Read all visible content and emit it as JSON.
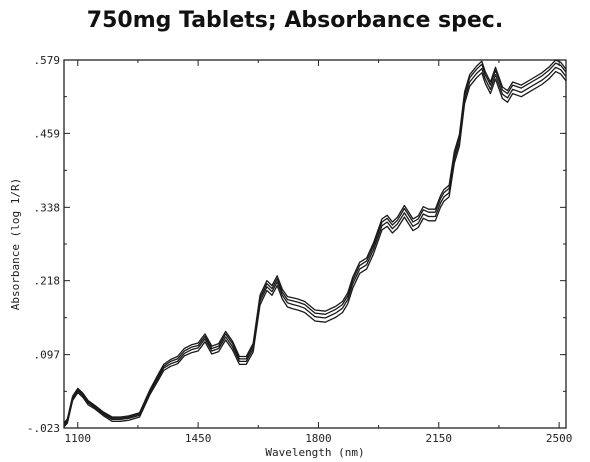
{
  "chart_data": {
    "type": "line",
    "title": "750mg Tablets; Absorbance spec.",
    "xlabel": "Wavelength (nm)",
    "ylabel": "Absorbance (log 1/R)",
    "xlim": [
      1060,
      2520
    ],
    "ylim": [
      -0.023,
      0.579
    ],
    "xticks": [
      1100,
      1450,
      1800,
      2150,
      2500
    ],
    "xtick_labels": [
      "1100",
      "1450",
      "1800",
      "2150",
      "2500"
    ],
    "yticks": [
      -0.023,
      0.097,
      0.218,
      0.338,
      0.459,
      0.579
    ],
    "ytick_labels": [
      "-.023",
      ".097",
      ".218",
      ".338",
      ".459",
      ".579"
    ],
    "grid": false,
    "legend": "none",
    "line_color": "#1a1a1a",
    "series": [
      {
        "x": [
          1060,
          1070,
          1085,
          1100,
          1115,
          1130,
          1150,
          1175,
          1200,
          1225,
          1250,
          1280,
          1310,
          1335,
          1350,
          1370,
          1390,
          1410,
          1430,
          1450,
          1470,
          1490,
          1510,
          1530,
          1550,
          1570,
          1590,
          1610,
          1630,
          1650,
          1665,
          1680,
          1695,
          1710,
          1725,
          1740,
          1760,
          1790,
          1820,
          1850,
          1870,
          1885,
          1900,
          1920,
          1940,
          1960,
          1985,
          2000,
          2015,
          2030,
          2050,
          2075,
          2090,
          2105,
          2120,
          2140,
          2155,
          2165,
          2180,
          2195,
          2210,
          2225,
          2240,
          2260,
          2275,
          2285,
          2300,
          2315,
          2335,
          2350,
          2365,
          2390,
          2420,
          2450,
          2470,
          2490,
          2505,
          2520
        ],
        "y": [
          -0.021,
          -0.015,
          0.022,
          0.035,
          0.027,
          0.015,
          0.008,
          -0.003,
          -0.012,
          -0.012,
          -0.01,
          -0.005,
          0.032,
          0.056,
          0.071,
          0.078,
          0.082,
          0.095,
          0.1,
          0.103,
          0.118,
          0.098,
          0.102,
          0.121,
          0.105,
          0.081,
          0.081,
          0.101,
          0.178,
          0.202,
          0.194,
          0.21,
          0.188,
          0.175,
          0.172,
          0.17,
          0.166,
          0.152,
          0.15,
          0.158,
          0.166,
          0.18,
          0.206,
          0.23,
          0.237,
          0.262,
          0.301,
          0.307,
          0.296,
          0.304,
          0.322,
          0.3,
          0.305,
          0.32,
          0.316,
          0.316,
          0.338,
          0.348,
          0.355,
          0.41,
          0.438,
          0.508,
          0.536,
          0.55,
          0.558,
          0.541,
          0.524,
          0.548,
          0.516,
          0.51,
          0.524,
          0.519,
          0.529,
          0.539,
          0.548,
          0.56,
          0.556,
          0.545
        ]
      },
      {
        "x": [
          1060,
          1070,
          1085,
          1100,
          1115,
          1130,
          1150,
          1175,
          1200,
          1225,
          1250,
          1280,
          1310,
          1335,
          1350,
          1370,
          1390,
          1410,
          1430,
          1450,
          1470,
          1490,
          1510,
          1530,
          1550,
          1570,
          1590,
          1610,
          1630,
          1650,
          1665,
          1680,
          1695,
          1710,
          1725,
          1740,
          1760,
          1790,
          1820,
          1850,
          1870,
          1885,
          1900,
          1920,
          1940,
          1960,
          1985,
          2000,
          2015,
          2030,
          2050,
          2075,
          2090,
          2105,
          2120,
          2140,
          2155,
          2165,
          2180,
          2195,
          2210,
          2225,
          2240,
          2260,
          2275,
          2285,
          2300,
          2315,
          2335,
          2350,
          2365,
          2390,
          2420,
          2450,
          2470,
          2490,
          2505,
          2520
        ],
        "y": [
          -0.019,
          -0.012,
          0.025,
          0.038,
          0.03,
          0.018,
          0.01,
          -0.001,
          -0.009,
          -0.009,
          -0.007,
          -0.002,
          0.035,
          0.06,
          0.075,
          0.082,
          0.086,
          0.099,
          0.105,
          0.108,
          0.123,
          0.103,
          0.107,
          0.126,
          0.11,
          0.086,
          0.086,
          0.106,
          0.184,
          0.208,
          0.2,
          0.216,
          0.194,
          0.182,
          0.179,
          0.177,
          0.173,
          0.159,
          0.157,
          0.165,
          0.173,
          0.187,
          0.213,
          0.237,
          0.244,
          0.269,
          0.308,
          0.314,
          0.303,
          0.311,
          0.329,
          0.307,
          0.312,
          0.327,
          0.323,
          0.323,
          0.345,
          0.355,
          0.362,
          0.417,
          0.445,
          0.515,
          0.543,
          0.557,
          0.565,
          0.548,
          0.531,
          0.555,
          0.523,
          0.517,
          0.531,
          0.526,
          0.536,
          0.546,
          0.555,
          0.567,
          0.563,
          0.552
        ]
      },
      {
        "x": [
          1060,
          1070,
          1085,
          1100,
          1115,
          1130,
          1150,
          1175,
          1200,
          1225,
          1250,
          1280,
          1310,
          1335,
          1350,
          1370,
          1390,
          1410,
          1430,
          1450,
          1470,
          1490,
          1510,
          1530,
          1550,
          1570,
          1590,
          1610,
          1630,
          1650,
          1665,
          1680,
          1695,
          1710,
          1725,
          1740,
          1760,
          1790,
          1820,
          1850,
          1870,
          1885,
          1900,
          1920,
          1940,
          1960,
          1985,
          2000,
          2015,
          2030,
          2050,
          2075,
          2090,
          2105,
          2120,
          2140,
          2155,
          2165,
          2180,
          2195,
          2210,
          2225,
          2240,
          2260,
          2275,
          2285,
          2300,
          2315,
          2335,
          2350,
          2365,
          2390,
          2420,
          2450,
          2470,
          2490,
          2505,
          2520
        ],
        "y": [
          -0.017,
          -0.01,
          0.027,
          0.04,
          0.032,
          0.02,
          0.012,
          0.001,
          -0.007,
          -0.007,
          -0.005,
          0.0,
          0.038,
          0.063,
          0.078,
          0.086,
          0.09,
          0.103,
          0.109,
          0.112,
          0.127,
          0.107,
          0.111,
          0.131,
          0.115,
          0.09,
          0.09,
          0.111,
          0.189,
          0.213,
          0.205,
          0.221,
          0.199,
          0.187,
          0.185,
          0.183,
          0.179,
          0.165,
          0.163,
          0.171,
          0.179,
          0.193,
          0.219,
          0.243,
          0.25,
          0.275,
          0.314,
          0.32,
          0.309,
          0.317,
          0.336,
          0.314,
          0.319,
          0.334,
          0.33,
          0.33,
          0.352,
          0.362,
          0.369,
          0.424,
          0.452,
          0.522,
          0.55,
          0.564,
          0.572,
          0.555,
          0.538,
          0.562,
          0.53,
          0.524,
          0.538,
          0.533,
          0.543,
          0.553,
          0.562,
          0.574,
          0.57,
          0.559
        ]
      },
      {
        "x": [
          1060,
          1070,
          1085,
          1100,
          1115,
          1130,
          1150,
          1175,
          1200,
          1225,
          1250,
          1280,
          1310,
          1335,
          1350,
          1370,
          1390,
          1410,
          1430,
          1450,
          1470,
          1490,
          1510,
          1530,
          1550,
          1570,
          1590,
          1610,
          1630,
          1650,
          1665,
          1680,
          1695,
          1710,
          1725,
          1740,
          1760,
          1790,
          1820,
          1850,
          1870,
          1885,
          1900,
          1920,
          1940,
          1960,
          1985,
          2000,
          2015,
          2030,
          2050,
          2075,
          2090,
          2105,
          2120,
          2140,
          2155,
          2165,
          2180,
          2195,
          2210,
          2225,
          2240,
          2260,
          2275,
          2285,
          2300,
          2315,
          2335,
          2350,
          2365,
          2390,
          2420,
          2450,
          2470,
          2490,
          2505,
          2520
        ],
        "y": [
          -0.015,
          -0.008,
          0.029,
          0.042,
          0.034,
          0.022,
          0.014,
          0.003,
          -0.005,
          -0.005,
          -0.003,
          0.002,
          0.04,
          0.066,
          0.081,
          0.089,
          0.094,
          0.107,
          0.113,
          0.116,
          0.131,
          0.111,
          0.115,
          0.135,
          0.119,
          0.094,
          0.094,
          0.115,
          0.194,
          0.218,
          0.21,
          0.226,
          0.204,
          0.192,
          0.19,
          0.188,
          0.184,
          0.17,
          0.168,
          0.176,
          0.184,
          0.198,
          0.224,
          0.248,
          0.255,
          0.28,
          0.319,
          0.325,
          0.314,
          0.322,
          0.341,
          0.319,
          0.324,
          0.339,
          0.335,
          0.335,
          0.357,
          0.367,
          0.374,
          0.429,
          0.457,
          0.527,
          0.555,
          0.569,
          0.577,
          0.56,
          0.543,
          0.567,
          0.535,
          0.529,
          0.543,
          0.538,
          0.548,
          0.558,
          0.567,
          0.579,
          0.575,
          0.564
        ]
      }
    ]
  }
}
